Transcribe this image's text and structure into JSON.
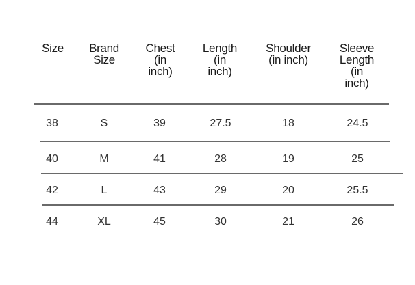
{
  "table": {
    "headers": [
      "Size",
      "Brand\nSize",
      "Chest\n(in\ninch)",
      "Length\n(in\ninch)",
      "Shoulder\n(in inch)",
      "Sleeve\nLength\n(in\ninch)"
    ],
    "rows": [
      [
        "38",
        "S",
        "39",
        "27.5",
        "18",
        "24.5"
      ],
      [
        "40",
        "M",
        "41",
        "28",
        "19",
        "25"
      ],
      [
        "42",
        "L",
        "43",
        "29",
        "20",
        "25.5"
      ],
      [
        "44",
        "XL",
        "45",
        "30",
        "21",
        "26"
      ]
    ]
  }
}
